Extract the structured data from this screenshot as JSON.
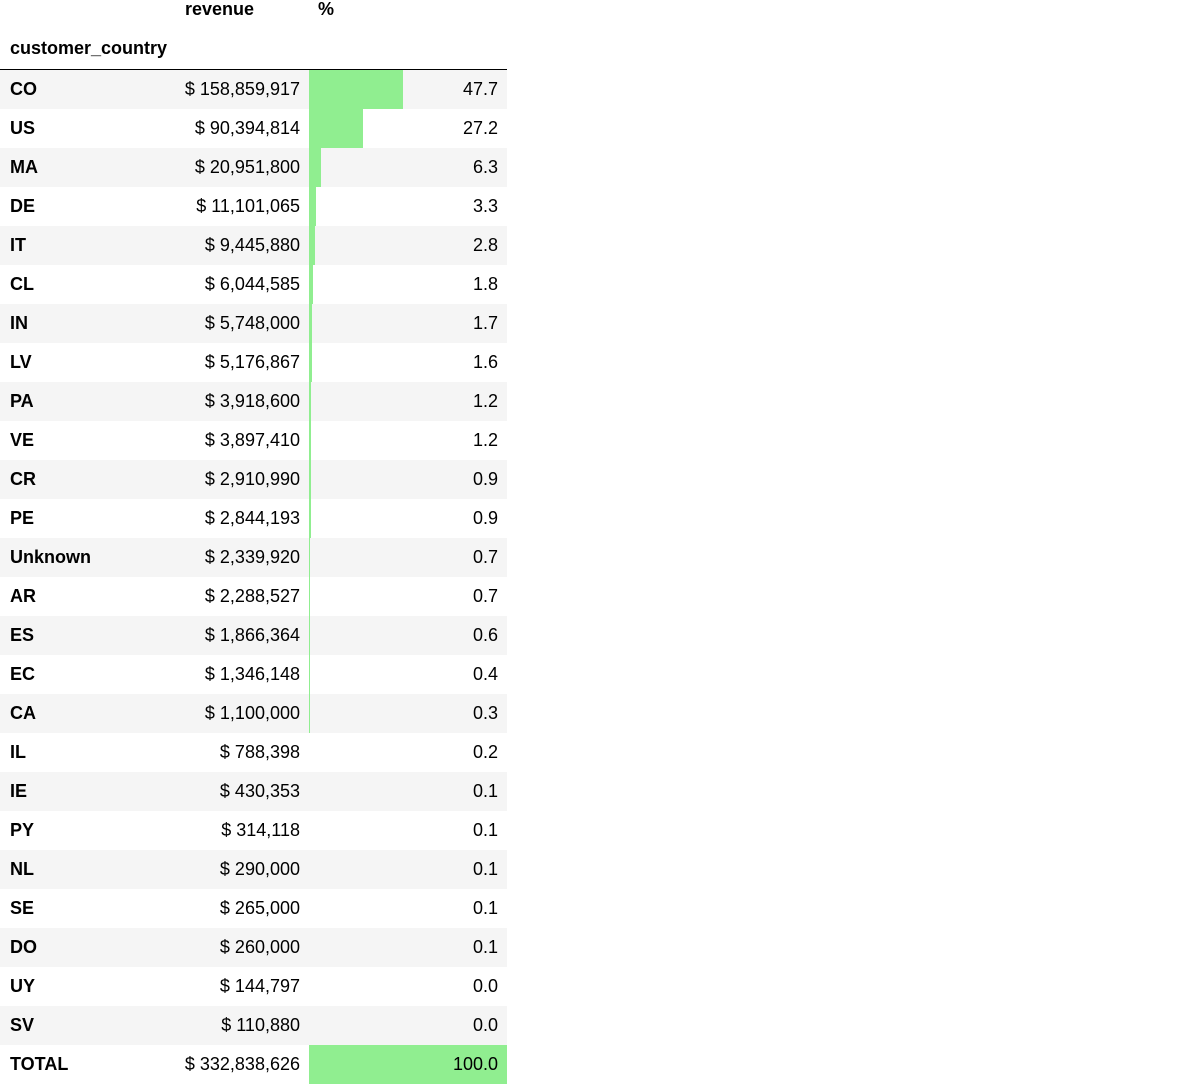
{
  "table": {
    "columns": {
      "revenue": "revenue",
      "pct": "%",
      "index_name": "customer_country"
    },
    "bar_color": "#90ee90",
    "rows": [
      {
        "country": "CO",
        "revenue": "$ 158,859,917",
        "pct": "47.7",
        "pct_value": 47.7
      },
      {
        "country": "US",
        "revenue": "$ 90,394,814",
        "pct": "27.2",
        "pct_value": 27.2
      },
      {
        "country": "MA",
        "revenue": "$ 20,951,800",
        "pct": "6.3",
        "pct_value": 6.3
      },
      {
        "country": "DE",
        "revenue": "$ 11,101,065",
        "pct": "3.3",
        "pct_value": 3.3
      },
      {
        "country": "IT",
        "revenue": "$ 9,445,880",
        "pct": "2.8",
        "pct_value": 2.8
      },
      {
        "country": "CL",
        "revenue": "$ 6,044,585",
        "pct": "1.8",
        "pct_value": 1.8
      },
      {
        "country": "IN",
        "revenue": "$ 5,748,000",
        "pct": "1.7",
        "pct_value": 1.7
      },
      {
        "country": "LV",
        "revenue": "$ 5,176,867",
        "pct": "1.6",
        "pct_value": 1.6
      },
      {
        "country": "PA",
        "revenue": "$ 3,918,600",
        "pct": "1.2",
        "pct_value": 1.2
      },
      {
        "country": "VE",
        "revenue": "$ 3,897,410",
        "pct": "1.2",
        "pct_value": 1.2
      },
      {
        "country": "CR",
        "revenue": "$ 2,910,990",
        "pct": "0.9",
        "pct_value": 0.9
      },
      {
        "country": "PE",
        "revenue": "$ 2,844,193",
        "pct": "0.9",
        "pct_value": 0.9
      },
      {
        "country": "Unknown",
        "revenue": "$ 2,339,920",
        "pct": "0.7",
        "pct_value": 0.7
      },
      {
        "country": "AR",
        "revenue": "$ 2,288,527",
        "pct": "0.7",
        "pct_value": 0.7
      },
      {
        "country": "ES",
        "revenue": "$ 1,866,364",
        "pct": "0.6",
        "pct_value": 0.6
      },
      {
        "country": "EC",
        "revenue": "$ 1,346,148",
        "pct": "0.4",
        "pct_value": 0.4
      },
      {
        "country": "CA",
        "revenue": "$ 1,100,000",
        "pct": "0.3",
        "pct_value": 0.3
      },
      {
        "country": "IL",
        "revenue": "$ 788,398",
        "pct": "0.2",
        "pct_value": 0.2
      },
      {
        "country": "IE",
        "revenue": "$ 430,353",
        "pct": "0.1",
        "pct_value": 0.1
      },
      {
        "country": "PY",
        "revenue": "$ 314,118",
        "pct": "0.1",
        "pct_value": 0.1
      },
      {
        "country": "NL",
        "revenue": "$ 290,000",
        "pct": "0.1",
        "pct_value": 0.1
      },
      {
        "country": "SE",
        "revenue": "$ 265,000",
        "pct": "0.1",
        "pct_value": 0.1
      },
      {
        "country": "DO",
        "revenue": "$ 260,000",
        "pct": "0.1",
        "pct_value": 0.1
      },
      {
        "country": "UY",
        "revenue": "$ 144,797",
        "pct": "0.0",
        "pct_value": 0.0
      },
      {
        "country": "SV",
        "revenue": "$ 110,880",
        "pct": "0.0",
        "pct_value": 0.0
      },
      {
        "country": "TOTAL",
        "revenue": "$ 332,838,626",
        "pct": "100.0",
        "pct_value": 100.0
      }
    ]
  }
}
